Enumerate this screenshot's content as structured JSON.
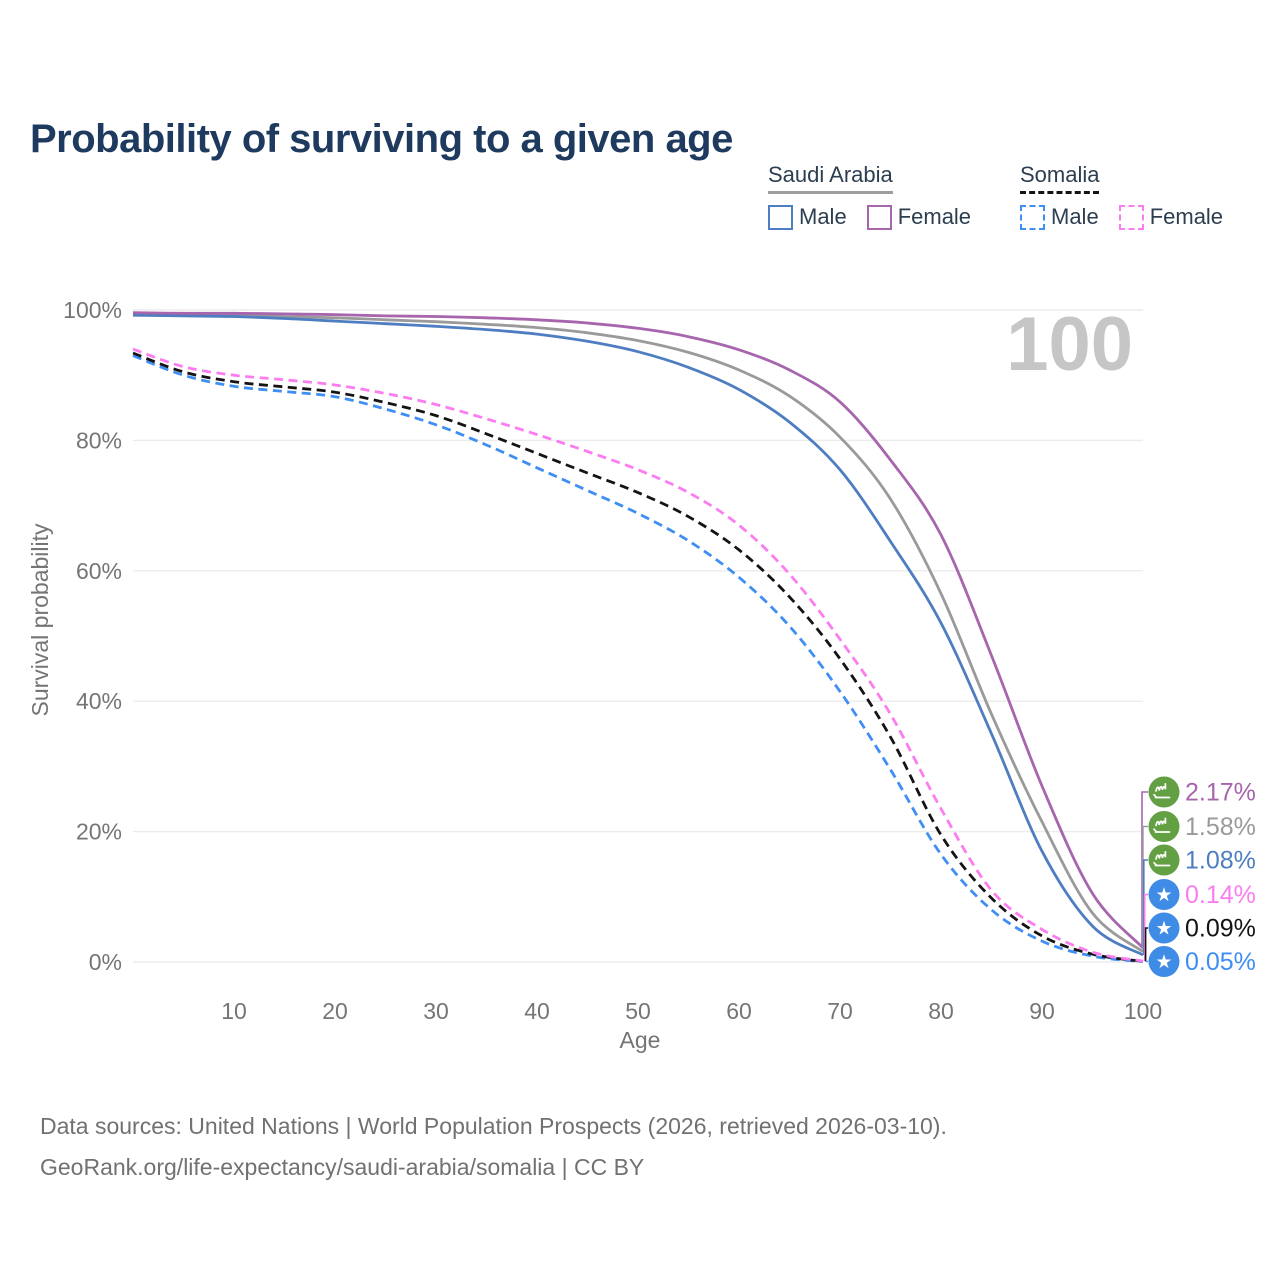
{
  "title": "Probability of surviving to a given age",
  "watermark": {
    "text": "100",
    "color": "#c6c6c6"
  },
  "legend": {
    "groups": [
      {
        "label": "Saudi Arabia",
        "underline_style": "solid",
        "underline_color": "#9e9e9e",
        "items": [
          {
            "label": "Male",
            "color": "#4e7dc1",
            "dashed": false
          },
          {
            "label": "Female",
            "color": "#a765ad",
            "dashed": false
          }
        ]
      },
      {
        "label": "Somalia",
        "underline_style": "dashed",
        "underline_color": "#141414",
        "items": [
          {
            "label": "Male",
            "color": "#3f8ef3",
            "dashed": true
          },
          {
            "label": "Female",
            "color": "#fb7df0",
            "dashed": true
          }
        ]
      }
    ]
  },
  "chart_data": {
    "type": "line",
    "title": "Probability of surviving to a given age",
    "xlabel": "Age",
    "ylabel": "Survival probability",
    "xlim": [
      0,
      100
    ],
    "ylim": [
      0,
      100
    ],
    "grid": "horizontal",
    "legend_position": "top-right",
    "x_ticks": [
      10,
      20,
      30,
      40,
      50,
      60,
      70,
      80,
      90,
      100
    ],
    "y_ticks": [
      {
        "value": 100,
        "label": "100%"
      },
      {
        "value": 80,
        "label": "80%"
      },
      {
        "value": 60,
        "label": "60%"
      },
      {
        "value": 40,
        "label": "40%"
      },
      {
        "value": 20,
        "label": "20%"
      },
      {
        "value": 0,
        "label": "0%"
      }
    ],
    "x": [
      0,
      5,
      10,
      15,
      20,
      25,
      30,
      35,
      40,
      45,
      50,
      55,
      60,
      65,
      70,
      75,
      80,
      85,
      90,
      95,
      100
    ],
    "series": [
      {
        "name": "Saudi Arabia — Both sexes",
        "country": "Saudi Arabia",
        "sex": "Both sexes",
        "style": "solid",
        "color": "#9a9a9a",
        "values": [
          99.4,
          99.3,
          99.2,
          99.0,
          98.8,
          98.5,
          98.2,
          97.8,
          97.3,
          96.5,
          95.3,
          93.5,
          90.8,
          86.8,
          80.5,
          71.0,
          56.5,
          38.0,
          21.5,
          7.5,
          1.58
        ]
      },
      {
        "name": "Saudi Arabia — Male",
        "country": "Saudi Arabia",
        "sex": "Male",
        "style": "solid",
        "color": "#4e7dc1",
        "values": [
          99.2,
          99.1,
          99.0,
          98.7,
          98.3,
          97.9,
          97.5,
          97.0,
          96.3,
          95.2,
          93.6,
          91.2,
          87.8,
          82.8,
          75.5,
          64.5,
          52.0,
          35.0,
          17.0,
          5.5,
          1.08
        ]
      },
      {
        "name": "Saudi Arabia — Female",
        "country": "Saudi Arabia",
        "sex": "Female",
        "style": "solid",
        "color": "#a765ad",
        "values": [
          99.6,
          99.5,
          99.5,
          99.4,
          99.3,
          99.1,
          99.0,
          98.8,
          98.5,
          98.0,
          97.2,
          95.9,
          93.9,
          90.8,
          85.9,
          77.0,
          65.5,
          47.0,
          27.0,
          10.5,
          2.17
        ]
      },
      {
        "name": "Somalia — Male",
        "country": "Somalia",
        "sex": "Male",
        "style": "dashed",
        "color": "#3f8ef3",
        "values": [
          93.0,
          90.0,
          88.3,
          87.5,
          86.7,
          84.8,
          82.4,
          79.3,
          75.8,
          72.3,
          68.8,
          64.6,
          59.0,
          51.5,
          41.5,
          29.5,
          16.5,
          8.0,
          3.2,
          0.9,
          0.05
        ]
      },
      {
        "name": "Somalia — Both sexes",
        "country": "Somalia",
        "sex": "Both sexes",
        "style": "dashed",
        "color": "#141414",
        "values": [
          93.4,
          90.5,
          89.0,
          88.2,
          87.4,
          85.8,
          83.8,
          81.0,
          78.0,
          75.0,
          72.0,
          68.3,
          63.2,
          56.0,
          46.5,
          34.5,
          19.5,
          9.8,
          4.0,
          1.2,
          0.09
        ]
      },
      {
        "name": "Somalia — Female",
        "country": "Somalia",
        "sex": "Female",
        "style": "dashed",
        "color": "#fb7df0",
        "values": [
          94.0,
          91.3,
          90.0,
          89.3,
          88.5,
          87.2,
          85.5,
          83.3,
          80.9,
          78.3,
          75.5,
          72.0,
          67.0,
          59.5,
          49.5,
          38.0,
          23.5,
          11.0,
          5.0,
          1.5,
          0.14
        ]
      }
    ],
    "end_labels": [
      {
        "value": "2.17%",
        "series": "Saudi Arabia — Female",
        "flag": "saudi-arabia",
        "flag_color": "#63a043",
        "color": "#a765ad"
      },
      {
        "value": "1.58%",
        "series": "Saudi Arabia — Both sexes",
        "flag": "saudi-arabia",
        "flag_color": "#63a043",
        "color": "#9a9a9a"
      },
      {
        "value": "1.08%",
        "series": "Saudi Arabia — Male",
        "flag": "saudi-arabia",
        "flag_color": "#63a043",
        "color": "#4e7dc1"
      },
      {
        "value": "0.14%",
        "series": "Somalia — Female",
        "flag": "somalia",
        "flag_color": "#3f8ce6",
        "color": "#fb7df0"
      },
      {
        "value": "0.09%",
        "series": "Somalia — Both sexes",
        "flag": "somalia",
        "flag_color": "#3f8ce6",
        "color": "#141414"
      },
      {
        "value": "0.05%",
        "series": "Somalia — Male",
        "flag": "somalia",
        "flag_color": "#3f8ce6",
        "color": "#3f8ef3"
      }
    ]
  },
  "footer": {
    "line1": "Data sources: United Nations | World Population Prospects (2026, retrieved 2026-03-10).",
    "line2": "GeoRank.org/life-expectancy/saudi-arabia/somalia | CC BY"
  }
}
